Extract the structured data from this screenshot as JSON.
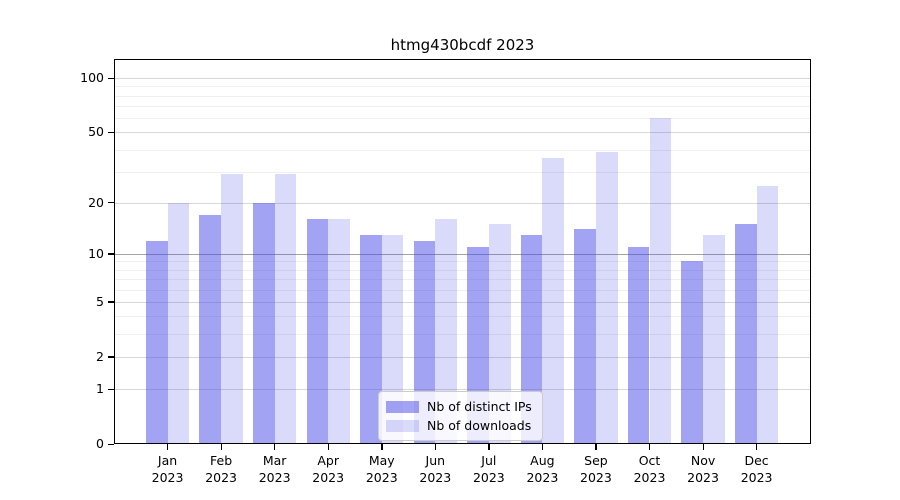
{
  "chart_data": {
    "type": "bar",
    "title": "htmg430bcdf 2023",
    "categories": [
      "Jan",
      "Feb",
      "Mar",
      "Apr",
      "May",
      "Jun",
      "Jul",
      "Aug",
      "Sep",
      "Oct",
      "Nov",
      "Dec"
    ],
    "year": "2023",
    "series": [
      {
        "name": "Nb of distinct IPs",
        "values": [
          12,
          17,
          20,
          16,
          13,
          12,
          11,
          13,
          14,
          11,
          9,
          15
        ],
        "color": "#a3a3f3",
        "fill_rgba": "rgba(71,71,231,0.5)"
      },
      {
        "name": "Nb of downloads",
        "values": [
          20,
          29,
          29,
          16,
          13,
          16,
          15,
          36,
          39,
          60,
          13,
          25
        ],
        "color": "#dcdcf8",
        "fill_rgba": "rgba(71,71,231,0.2)"
      }
    ],
    "xlabel": "",
    "ylabel": "",
    "yscale": "log10(value+1)",
    "yticks": [
      0,
      1,
      2,
      5,
      10,
      20,
      50,
      100
    ],
    "ylim": [
      0,
      128
    ],
    "grid": "on",
    "legend_position": "bottom-center",
    "colors": {
      "grid_major": "#d8d8d8",
      "grid_major_10": "#a3a3a3",
      "grid_minor": "#efefef",
      "axis": "#000000",
      "background": "#ffffff"
    }
  }
}
